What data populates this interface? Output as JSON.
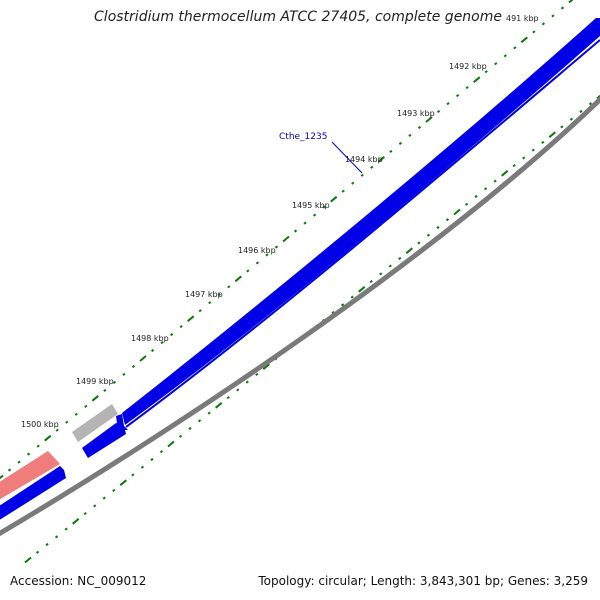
{
  "title": "Clostridium thermocellum ATCC 27405, complete genome",
  "footer": {
    "accession": "Accession: NC_009012",
    "summary": "Topology: circular; Length: 3,843,301 bp; Genes: 3,259"
  },
  "colors": {
    "forward_gene": "#0000e6",
    "reverse_gene": "#0000e6",
    "rna_gene": "#b4b4b4",
    "other_feature": "#f07c7c",
    "backbone": "#7a7a7a",
    "tick_marks": "#0a7a0a",
    "gene_label": "#0000cc"
  },
  "tick_labels": [
    "491 kbp",
    "1492 kbp",
    "1493 kbp",
    "1494 kbp",
    "1495 kbp",
    "1496 kbp",
    "1497 kbp",
    "1498 kbp",
    "1499 kbp",
    "1500 kbp"
  ],
  "gene_labels": [
    "Cthe_1235"
  ]
}
